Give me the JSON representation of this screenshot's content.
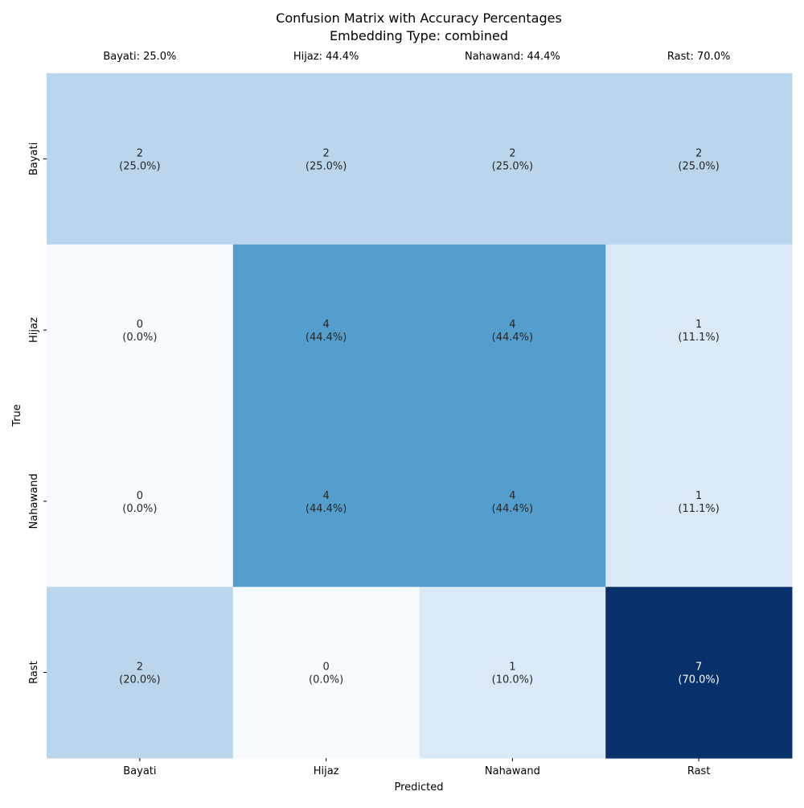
{
  "chart_data": {
    "type": "heatmap",
    "title": "Confusion Matrix with Accuracy Percentages",
    "subtitle": "Embedding Type: combined",
    "xlabel": "Predicted",
    "ylabel": "True",
    "x_categories": [
      "Bayati",
      "Hijaz",
      "Nahawand",
      "Rast"
    ],
    "y_categories": [
      "Bayati",
      "Hijaz",
      "Nahawand",
      "Rast"
    ],
    "column_accuracy_labels": [
      "Bayati: 25.0%",
      "Hijaz: 44.4%",
      "Nahawand: 44.4%",
      "Rast: 70.0%"
    ],
    "values": [
      [
        2,
        2,
        2,
        2
      ],
      [
        0,
        4,
        4,
        1
      ],
      [
        0,
        4,
        4,
        1
      ],
      [
        2,
        0,
        1,
        7
      ]
    ],
    "percent_labels": [
      [
        "(25.0%)",
        "(25.0%)",
        "(25.0%)",
        "(25.0%)"
      ],
      [
        "(0.0%)",
        "(44.4%)",
        "(44.4%)",
        "(11.1%)"
      ],
      [
        "(0.0%)",
        "(44.4%)",
        "(44.4%)",
        "(11.1%)"
      ],
      [
        "(20.0%)",
        "(0.0%)",
        "(10.0%)",
        "(70.0%)"
      ]
    ],
    "colorscale": "Blues",
    "color_range": [
      0,
      7
    ],
    "legend": "none",
    "grid": false
  }
}
